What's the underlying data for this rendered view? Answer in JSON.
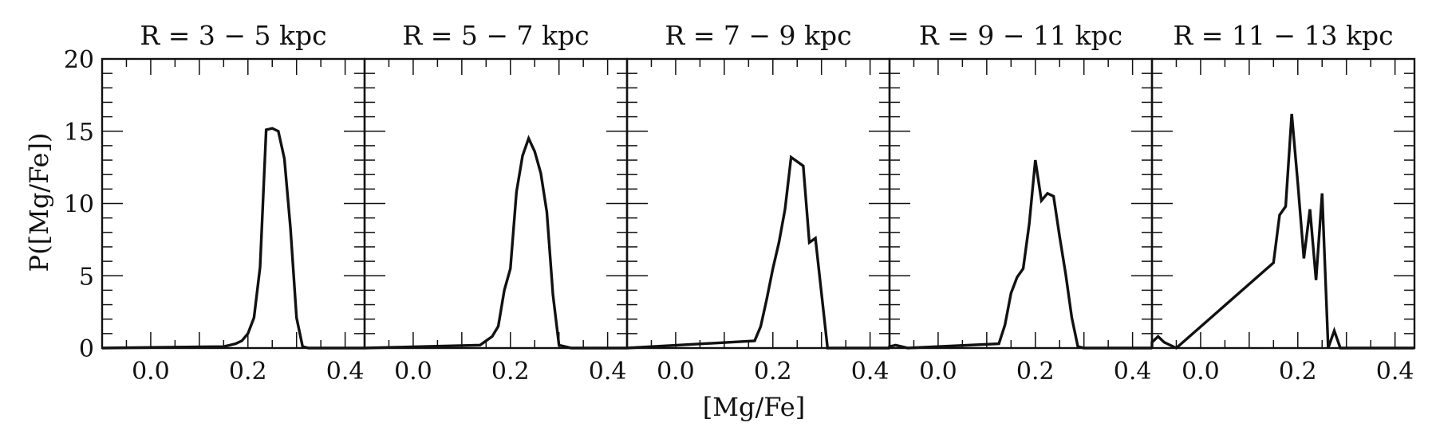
{
  "chart_data": {
    "type": "histogram",
    "xlabel": "[Mg/Fe]",
    "ylabel": "P([Mg/Fe])",
    "xlim": [
      -0.1,
      0.44
    ],
    "ylim": [
      0,
      20
    ],
    "xticks": [
      0.0,
      0.2,
      0.4
    ],
    "xtick_labels": [
      "0.0",
      "0.2",
      "0.4"
    ],
    "yticks": [
      0,
      5,
      10,
      15,
      20
    ],
    "ytick_labels": [
      "0",
      "5",
      "10",
      "15",
      "20"
    ],
    "bin_width": 0.0125,
    "panels": [
      {
        "title": "R = 3 − 5 kpc",
        "bins_left": [
          0.15,
          0.1625,
          0.175,
          0.1875,
          0.2,
          0.2125,
          0.225,
          0.2375,
          0.25,
          0.2625,
          0.275,
          0.2875,
          0.3,
          0.3125
        ],
        "values": [
          0.1,
          0.2,
          0.3,
          0.5,
          1.0,
          2.1,
          5.6,
          15.1,
          15.2,
          15.0,
          13.1,
          8.3,
          2.1,
          0.1
        ]
      },
      {
        "title": "R = 5 − 7 kpc",
        "bins_left": [
          0.1375,
          0.15,
          0.1625,
          0.175,
          0.1875,
          0.2,
          0.2125,
          0.225,
          0.2375,
          0.25,
          0.2625,
          0.275,
          0.2875,
          0.3,
          0.3125
        ],
        "values": [
          0.2,
          0.5,
          0.8,
          1.5,
          4.0,
          5.5,
          10.8,
          13.3,
          14.5,
          13.6,
          12.1,
          9.4,
          3.7,
          0.2,
          0.1
        ]
      },
      {
        "title": "R = 7 − 9 kpc",
        "bins_left": [
          0.1625,
          0.175,
          0.1875,
          0.2,
          0.2125,
          0.225,
          0.2375,
          0.25,
          0.2625,
          0.275,
          0.2875,
          0.3
        ],
        "values": [
          0.5,
          1.5,
          3.4,
          5.5,
          7.3,
          9.6,
          13.2,
          12.9,
          12.6,
          7.3,
          7.6,
          3.8
        ]
      },
      {
        "title": "R = 9 − 11 kpc",
        "bins_left": [
          -0.1,
          -0.0875,
          -0.075,
          0.125,
          0.1375,
          0.15,
          0.1625,
          0.175,
          0.1875,
          0.2,
          0.2125,
          0.225,
          0.2375,
          0.25,
          0.2625,
          0.275,
          0.2875
        ],
        "values": [
          0.1,
          0.2,
          0.1,
          0.3,
          1.6,
          3.8,
          4.9,
          5.5,
          8.6,
          13.0,
          10.2,
          10.7,
          10.5,
          7.7,
          5.1,
          2.1,
          0.1
        ]
      },
      {
        "title": "R = 11 − 13 kpc",
        "bins_left": [
          -0.1,
          -0.0875,
          -0.075,
          -0.0625,
          0.15,
          0.1625,
          0.175,
          0.1875,
          0.2,
          0.2125,
          0.225,
          0.2375,
          0.25,
          0.2625,
          0.275,
          0.2875
        ],
        "values": [
          0.4,
          0.8,
          0.4,
          0.2,
          5.9,
          9.2,
          9.8,
          16.2,
          11.4,
          6.2,
          9.6,
          4.7,
          10.7,
          0.0,
          1.2,
          0.0
        ]
      }
    ]
  }
}
